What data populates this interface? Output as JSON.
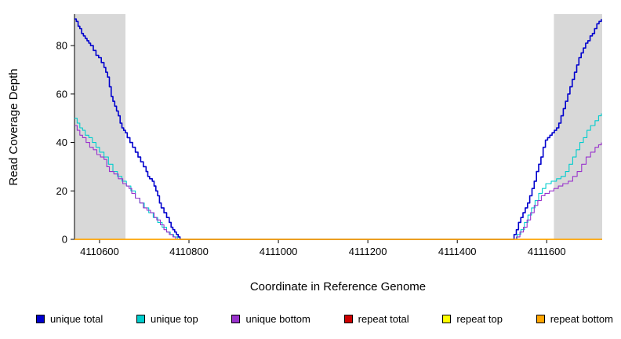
{
  "chart_data": {
    "type": "line",
    "title": "",
    "xlabel": "Coordinate in Reference Genome",
    "ylabel": "Read Coverage Depth",
    "xlim": [
      4110544,
      4111724
    ],
    "ylim": [
      0,
      93
    ],
    "x_ticks": [
      4110600,
      4110800,
      4111000,
      4111200,
      4111400,
      4111600
    ],
    "y_ticks": [
      0,
      20,
      40,
      60,
      80
    ],
    "grid": false,
    "background": "#ffffff",
    "axis_color": "#000000",
    "shaded_regions": [
      {
        "x0": 4110544,
        "x1": 4110658,
        "color": "#d8d8d8"
      },
      {
        "x0": 4111616,
        "x1": 4111724,
        "color": "#d8d8d8"
      }
    ],
    "legend_position": "bottom",
    "legend": [
      {
        "label": "unique total",
        "color": "#0000cd"
      },
      {
        "label": "unique top",
        "color": "#00cdcd"
      },
      {
        "label": "unique bottom",
        "color": "#9932cc"
      },
      {
        "label": "repeat total",
        "color": "#cd0000"
      },
      {
        "label": "repeat top",
        "color": "#ffff00"
      },
      {
        "label": "repeat bottom",
        "color": "#ffa500"
      }
    ],
    "series": [
      {
        "name": "unique top",
        "color": "#00cdcd",
        "width": 1.1,
        "points": [
          [
            4110544,
            50
          ],
          [
            4110550,
            48
          ],
          [
            4110556,
            46
          ],
          [
            4110562,
            45
          ],
          [
            4110568,
            43
          ],
          [
            4110576,
            42
          ],
          [
            4110584,
            40
          ],
          [
            4110592,
            38
          ],
          [
            4110600,
            36
          ],
          [
            4110610,
            34
          ],
          [
            4110620,
            31
          ],
          [
            4110630,
            28
          ],
          [
            4110640,
            26
          ],
          [
            4110650,
            24
          ],
          [
            4110660,
            22
          ],
          [
            4110670,
            20
          ],
          [
            4110680,
            17
          ],
          [
            4110690,
            15
          ],
          [
            4110700,
            13
          ],
          [
            4110710,
            11
          ],
          [
            4110720,
            9
          ],
          [
            4110730,
            7
          ],
          [
            4110740,
            5
          ],
          [
            4110750,
            3
          ],
          [
            4110758,
            2
          ],
          [
            4110766,
            1
          ],
          [
            4110774,
            0
          ],
          [
            4111526,
            0
          ],
          [
            4111534,
            2
          ],
          [
            4111542,
            4
          ],
          [
            4111550,
            7
          ],
          [
            4111558,
            10
          ],
          [
            4111566,
            13
          ],
          [
            4111574,
            16
          ],
          [
            4111582,
            19
          ],
          [
            4111590,
            21
          ],
          [
            4111598,
            23
          ],
          [
            4111610,
            24
          ],
          [
            4111622,
            25
          ],
          [
            4111632,
            26
          ],
          [
            4111642,
            28
          ],
          [
            4111650,
            31
          ],
          [
            4111658,
            34
          ],
          [
            4111666,
            37
          ],
          [
            4111674,
            40
          ],
          [
            4111682,
            42
          ],
          [
            4111690,
            45
          ],
          [
            4111698,
            47
          ],
          [
            4111708,
            49
          ],
          [
            4111716,
            51
          ],
          [
            4111722,
            52
          ]
        ]
      },
      {
        "name": "unique bottom",
        "color": "#9932cc",
        "width": 1.1,
        "points": [
          [
            4110544,
            47
          ],
          [
            4110550,
            45
          ],
          [
            4110556,
            43
          ],
          [
            4110562,
            42
          ],
          [
            4110570,
            40
          ],
          [
            4110578,
            38
          ],
          [
            4110586,
            37
          ],
          [
            4110594,
            35
          ],
          [
            4110602,
            34
          ],
          [
            4110610,
            33
          ],
          [
            4110616,
            30
          ],
          [
            4110622,
            28
          ],
          [
            4110632,
            27
          ],
          [
            4110642,
            25
          ],
          [
            4110652,
            23
          ],
          [
            4110660,
            22
          ],
          [
            4110666,
            21
          ],
          [
            4110672,
            19
          ],
          [
            4110680,
            17
          ],
          [
            4110690,
            15
          ],
          [
            4110698,
            13
          ],
          [
            4110706,
            12
          ],
          [
            4110714,
            11
          ],
          [
            4110722,
            9
          ],
          [
            4110728,
            8
          ],
          [
            4110736,
            6
          ],
          [
            4110744,
            4
          ],
          [
            4110750,
            3
          ],
          [
            4110756,
            2
          ],
          [
            4110764,
            1
          ],
          [
            4110770,
            0
          ],
          [
            4111524,
            0
          ],
          [
            4111532,
            1
          ],
          [
            4111540,
            3
          ],
          [
            4111548,
            5
          ],
          [
            4111556,
            8
          ],
          [
            4111564,
            11
          ],
          [
            4111572,
            14
          ],
          [
            4111580,
            16
          ],
          [
            4111588,
            18
          ],
          [
            4111596,
            19
          ],
          [
            4111606,
            20
          ],
          [
            4111616,
            21
          ],
          [
            4111626,
            22
          ],
          [
            4111636,
            23
          ],
          [
            4111648,
            24
          ],
          [
            4111658,
            26
          ],
          [
            4111668,
            28
          ],
          [
            4111678,
            31
          ],
          [
            4111688,
            34
          ],
          [
            4111698,
            36
          ],
          [
            4111708,
            38
          ],
          [
            4111716,
            39
          ],
          [
            4111722,
            40
          ]
        ]
      },
      {
        "name": "unique total",
        "color": "#0000cd",
        "width": 1.6,
        "points": [
          [
            4110544,
            91
          ],
          [
            4110548,
            90
          ],
          [
            4110552,
            88
          ],
          [
            4110556,
            87
          ],
          [
            4110560,
            85
          ],
          [
            4110564,
            84
          ],
          [
            4110568,
            83
          ],
          [
            4110572,
            82
          ],
          [
            4110576,
            81
          ],
          [
            4110580,
            80
          ],
          [
            4110586,
            78
          ],
          [
            4110592,
            76
          ],
          [
            4110598,
            75
          ],
          [
            4110604,
            73
          ],
          [
            4110610,
            71
          ],
          [
            4110614,
            69
          ],
          [
            4110618,
            67
          ],
          [
            4110622,
            63
          ],
          [
            4110626,
            59
          ],
          [
            4110630,
            57
          ],
          [
            4110634,
            55
          ],
          [
            4110638,
            53
          ],
          [
            4110642,
            51
          ],
          [
            4110646,
            48
          ],
          [
            4110650,
            46
          ],
          [
            4110654,
            45
          ],
          [
            4110658,
            44
          ],
          [
            4110662,
            42
          ],
          [
            4110668,
            40
          ],
          [
            4110674,
            38
          ],
          [
            4110680,
            36
          ],
          [
            4110686,
            34
          ],
          [
            4110692,
            32
          ],
          [
            4110698,
            30
          ],
          [
            4110704,
            28
          ],
          [
            4110708,
            26
          ],
          [
            4110712,
            25
          ],
          [
            4110718,
            24
          ],
          [
            4110722,
            22
          ],
          [
            4110726,
            20
          ],
          [
            4110730,
            18
          ],
          [
            4110734,
            15
          ],
          [
            4110738,
            13
          ],
          [
            4110744,
            11
          ],
          [
            4110750,
            9
          ],
          [
            4110756,
            7
          ],
          [
            4110760,
            5
          ],
          [
            4110764,
            4
          ],
          [
            4110768,
            3
          ],
          [
            4110772,
            2
          ],
          [
            4110776,
            1
          ],
          [
            4110780,
            0
          ],
          [
            4111522,
            0
          ],
          [
            4111527,
            2
          ],
          [
            4111532,
            4
          ],
          [
            4111537,
            7
          ],
          [
            4111542,
            9
          ],
          [
            4111547,
            11
          ],
          [
            4111552,
            13
          ],
          [
            4111557,
            15
          ],
          [
            4111562,
            18
          ],
          [
            4111567,
            21
          ],
          [
            4111572,
            24
          ],
          [
            4111577,
            28
          ],
          [
            4111582,
            31
          ],
          [
            4111587,
            34
          ],
          [
            4111592,
            38
          ],
          [
            4111597,
            41
          ],
          [
            4111602,
            42
          ],
          [
            4111607,
            43
          ],
          [
            4111612,
            44
          ],
          [
            4111617,
            45
          ],
          [
            4111622,
            46
          ],
          [
            4111627,
            48
          ],
          [
            4111632,
            51
          ],
          [
            4111637,
            54
          ],
          [
            4111642,
            57
          ],
          [
            4111647,
            60
          ],
          [
            4111652,
            63
          ],
          [
            4111657,
            66
          ],
          [
            4111662,
            69
          ],
          [
            4111667,
            72
          ],
          [
            4111672,
            75
          ],
          [
            4111677,
            77
          ],
          [
            4111682,
            79
          ],
          [
            4111687,
            81
          ],
          [
            4111692,
            82
          ],
          [
            4111697,
            84
          ],
          [
            4111702,
            85
          ],
          [
            4111707,
            87
          ],
          [
            4111712,
            89
          ],
          [
            4111717,
            90
          ],
          [
            4111722,
            91
          ]
        ]
      },
      {
        "name": "repeat total",
        "color": "#cd0000",
        "width": 1.2,
        "points": [
          [
            4110544,
            0
          ],
          [
            4111724,
            0
          ]
        ]
      },
      {
        "name": "repeat top",
        "color": "#ffff00",
        "width": 1.2,
        "points": [
          [
            4110544,
            0
          ],
          [
            4111724,
            0
          ]
        ]
      },
      {
        "name": "repeat bottom",
        "color": "#ffa500",
        "width": 1.4,
        "points": [
          [
            4110544,
            0
          ],
          [
            4111724,
            0
          ]
        ]
      }
    ]
  }
}
